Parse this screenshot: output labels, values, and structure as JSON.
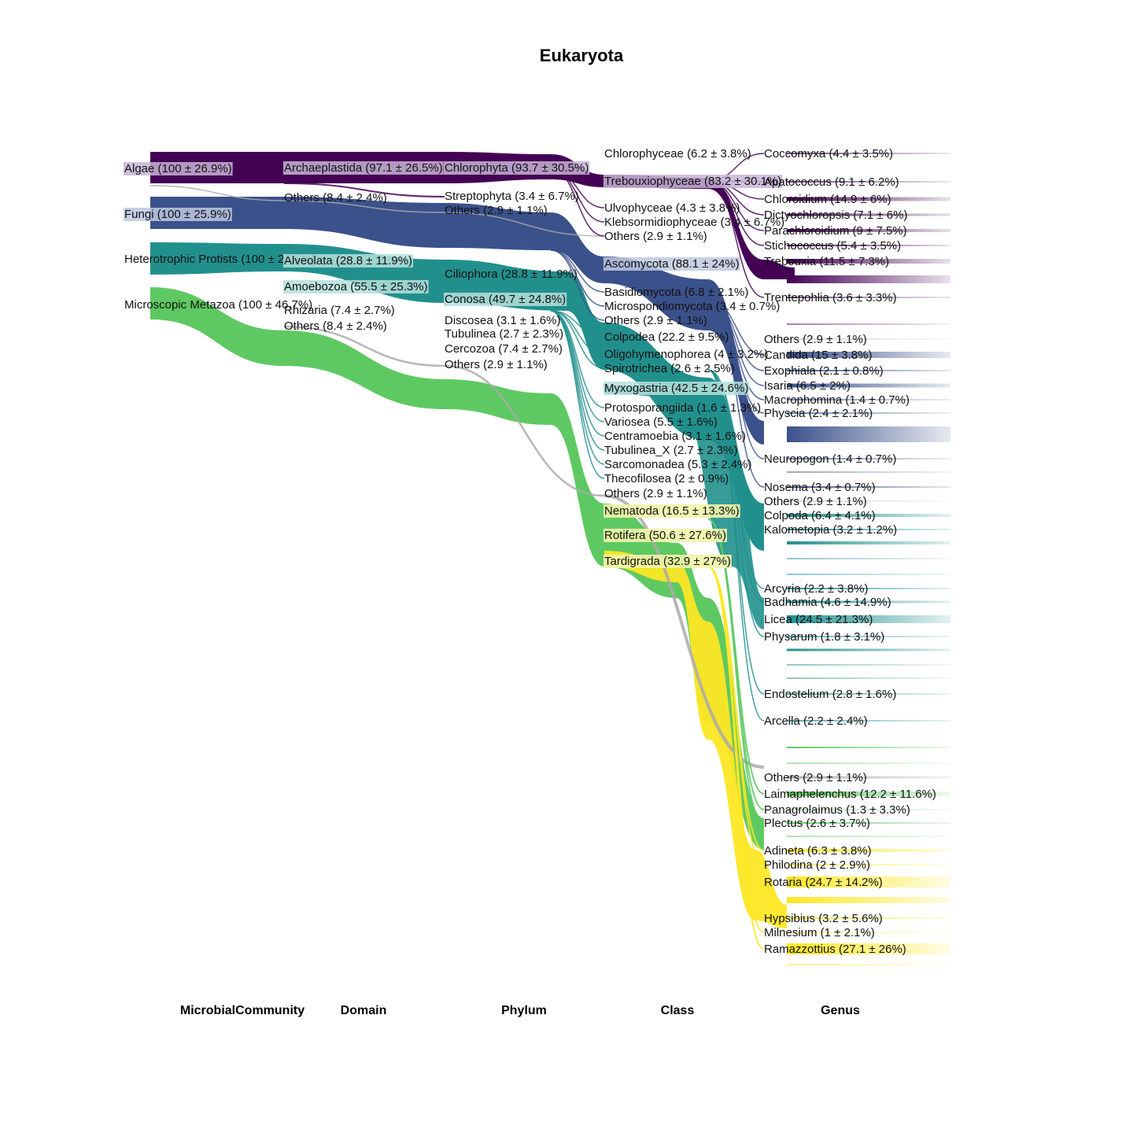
{
  "title": "Eukaryota",
  "axes": [
    "MicrobialCommunity",
    "Domain",
    "Phylum",
    "Class",
    "Genus"
  ],
  "colors": {
    "algae": "#440154",
    "fungi": "#3b518b",
    "protists": "#21908d",
    "metazoa": "#5ec962",
    "others": "#aaaaaa",
    "yellow": "#fde725"
  },
  "chart_data": {
    "type": "sankey",
    "columns": [
      {
        "name": "MicrobialCommunity",
        "nodes": [
          {
            "label": "Algae (100 ± 26.9%)",
            "group": "algae"
          },
          {
            "label": "Fungi (100 ± 25.9%)",
            "group": "fungi"
          },
          {
            "label": "Heterotrophic Protists (100 ± 25.1%)",
            "group": "protists"
          },
          {
            "label": "Microscopic Metazoa (100 ± 46.7%)",
            "group": "metazoa"
          }
        ]
      },
      {
        "name": "Domain",
        "nodes": [
          {
            "label": "Archaeplastida (97.1 ± 26.5%)",
            "group": "algae"
          },
          {
            "label": "Others (8.4 ± 2.4%)",
            "group": "others"
          },
          {
            "label": "Alveolata (28.8 ± 11.9%)",
            "group": "protists"
          },
          {
            "label": "Amoebozoa (55.5 ± 25.3%)",
            "group": "protists"
          },
          {
            "label": "Rhizaria (7.4 ± 2.7%)",
            "group": "protists"
          },
          {
            "label": "Others (8.4 ± 2.4%)",
            "group": "others"
          }
        ]
      },
      {
        "name": "Phylum",
        "nodes": [
          {
            "label": "Chlorophyta (93.7 ± 30.5%)",
            "group": "algae"
          },
          {
            "label": "Streptophyta (3.4 ± 6.7%)",
            "group": "algae"
          },
          {
            "label": "Others (2.9 ± 1.1%)",
            "group": "others"
          },
          {
            "label": "Ciliophora (28.8 ± 11.9%)",
            "group": "protists"
          },
          {
            "label": "Conosa (49.7 ± 24.8%)",
            "group": "protists"
          },
          {
            "label": "Discosea (3.1 ± 1.6%)",
            "group": "protists"
          },
          {
            "label": "Tubulinea (2.7 ± 2.3%)",
            "group": "protists"
          },
          {
            "label": "Cercozoa (7.4 ± 2.7%)",
            "group": "protists"
          },
          {
            "label": "Others (2.9 ± 1.1%)",
            "group": "others"
          }
        ]
      },
      {
        "name": "Class",
        "nodes": [
          {
            "label": "Chlorophyceae (6.2 ± 3.8%)",
            "group": "algae"
          },
          {
            "label": "Trebouxiophyceae (83.2 ± 30.1%)",
            "group": "algae"
          },
          {
            "label": "Ulvophyceae (4.3 ± 3.8%)",
            "group": "algae"
          },
          {
            "label": "Klebsormidiophyceae (3.4 ± 6.7%)",
            "group": "algae"
          },
          {
            "label": "Others (2.9 ± 1.1%)",
            "group": "others"
          },
          {
            "label": "Ascomycota (88.1 ± 24%)",
            "group": "fungi"
          },
          {
            "label": "Basidiomycota (6.8 ± 2.1%)",
            "group": "fungi"
          },
          {
            "label": "Microsporidiomycota (3.4 ± 0.7%)",
            "group": "fungi"
          },
          {
            "label": "Others (2.9 ± 1.1%)",
            "group": "others"
          },
          {
            "label": "Colpodea (22.2 ± 9.5%)",
            "group": "protists"
          },
          {
            "label": "Oligohymenophorea (4 ± 3.2%)",
            "group": "protists"
          },
          {
            "label": "Spirotrichea (2.6 ± 2.5%)",
            "group": "protists"
          },
          {
            "label": "Myxogastria (42.5 ± 24.6%)",
            "group": "protists"
          },
          {
            "label": "Protosporangiida (1.6 ± 1.3%)",
            "group": "protists"
          },
          {
            "label": "Variosea (5.5 ± 1.6%)",
            "group": "protists"
          },
          {
            "label": "Centramoebia (3.1 ± 1.6%)",
            "group": "protists"
          },
          {
            "label": "Tubulinea_X (2.7 ± 2.3%)",
            "group": "protists"
          },
          {
            "label": "Sarcomonadea (5.3 ± 2.4%)",
            "group": "protists"
          },
          {
            "label": "Thecofilosea (2 ± 0.9%)",
            "group": "protists"
          },
          {
            "label": "Others (2.9 ± 1.1%)",
            "group": "others"
          },
          {
            "label": "Nematoda (16.5 ± 13.3%)",
            "group": "metazoa"
          },
          {
            "label": "Rotifera (50.6 ± 27.6%)",
            "group": "metazoa"
          },
          {
            "label": "Tardigrada (32.9 ± 27%)",
            "group": "metazoa"
          }
        ]
      },
      {
        "name": "Genus",
        "nodes": [
          {
            "label": "Coccomyxa (4.4 ± 3.5%)",
            "group": "algae"
          },
          {
            "label": "Apatococcus (9.1 ± 6.2%)",
            "group": "algae"
          },
          {
            "label": "Chloroidium (14.9 ± 6%)",
            "group": "algae"
          },
          {
            "label": "Dictyochloropsis (7.1 ± 6%)",
            "group": "algae"
          },
          {
            "label": "Parachloroidium (9 ± 7.5%)",
            "group": "algae"
          },
          {
            "label": "Stichococcus (5.4 ± 3.5%)",
            "group": "algae"
          },
          {
            "label": "Trebouxia (11.5 ± 7.3%)",
            "group": "algae"
          },
          {
            "label": "Trentepohlia (3.6 ± 3.3%)",
            "group": "algae"
          },
          {
            "label": "Others (2.9 ± 1.1%)",
            "group": "others"
          },
          {
            "label": "Candida (15 ± 3.8%)",
            "group": "fungi"
          },
          {
            "label": "Exophiala (2.1 ± 0.8%)",
            "group": "fungi"
          },
          {
            "label": "Isaria (6.5 ± 2%)",
            "group": "fungi"
          },
          {
            "label": "Macrophomina (1.4 ± 0.7%)",
            "group": "fungi"
          },
          {
            "label": "Physcia (2.4 ± 2.1%)",
            "group": "fungi"
          },
          {
            "label": "Neuropogon (1.4 ± 0.7%)",
            "group": "fungi"
          },
          {
            "label": "Nosema (3.4 ± 0.7%)",
            "group": "fungi"
          },
          {
            "label": "Others (2.9 ± 1.1%)",
            "group": "others"
          },
          {
            "label": "Colpoda (6.4 ± 4.1%)",
            "group": "protists"
          },
          {
            "label": "Kalometopia (3.2 ± 1.2%)",
            "group": "protists"
          },
          {
            "label": "Arcyria (2.2 ± 3.8%)",
            "group": "protists"
          },
          {
            "label": "Badhamia (4.6 ± 14.9%)",
            "group": "protists"
          },
          {
            "label": "Licea (24.5 ± 21.3%)",
            "group": "protists"
          },
          {
            "label": "Physarum (1.8 ± 3.1%)",
            "group": "protists"
          },
          {
            "label": "Endostelium (2.8 ± 1.6%)",
            "group": "protists"
          },
          {
            "label": "Arcella (2.2 ± 2.4%)",
            "group": "protists"
          },
          {
            "label": "Others (2.9 ± 1.1%)",
            "group": "others"
          },
          {
            "label": "Laimaphelenchus (12.2 ± 11.6%)",
            "group": "metazoa"
          },
          {
            "label": "Panagrolaimus (1.3 ± 3.3%)",
            "group": "metazoa"
          },
          {
            "label": "Plectus (2.6 ± 3.7%)",
            "group": "metazoa"
          },
          {
            "label": "Adineta (6.3 ± 3.8%)",
            "group": "metazoa"
          },
          {
            "label": "Philodina (2 ± 2.9%)",
            "group": "metazoa"
          },
          {
            "label": "Rotaria (24.7 ± 14.2%)",
            "group": "metazoa"
          },
          {
            "label": "Hypsibius (3.2 ± 5.6%)",
            "group": "metazoa"
          },
          {
            "label": "Milnesium (1 ± 2.1%)",
            "group": "metazoa"
          },
          {
            "label": "Ramazzottius (27.1 ± 26%)",
            "group": "metazoa"
          }
        ]
      }
    ]
  }
}
